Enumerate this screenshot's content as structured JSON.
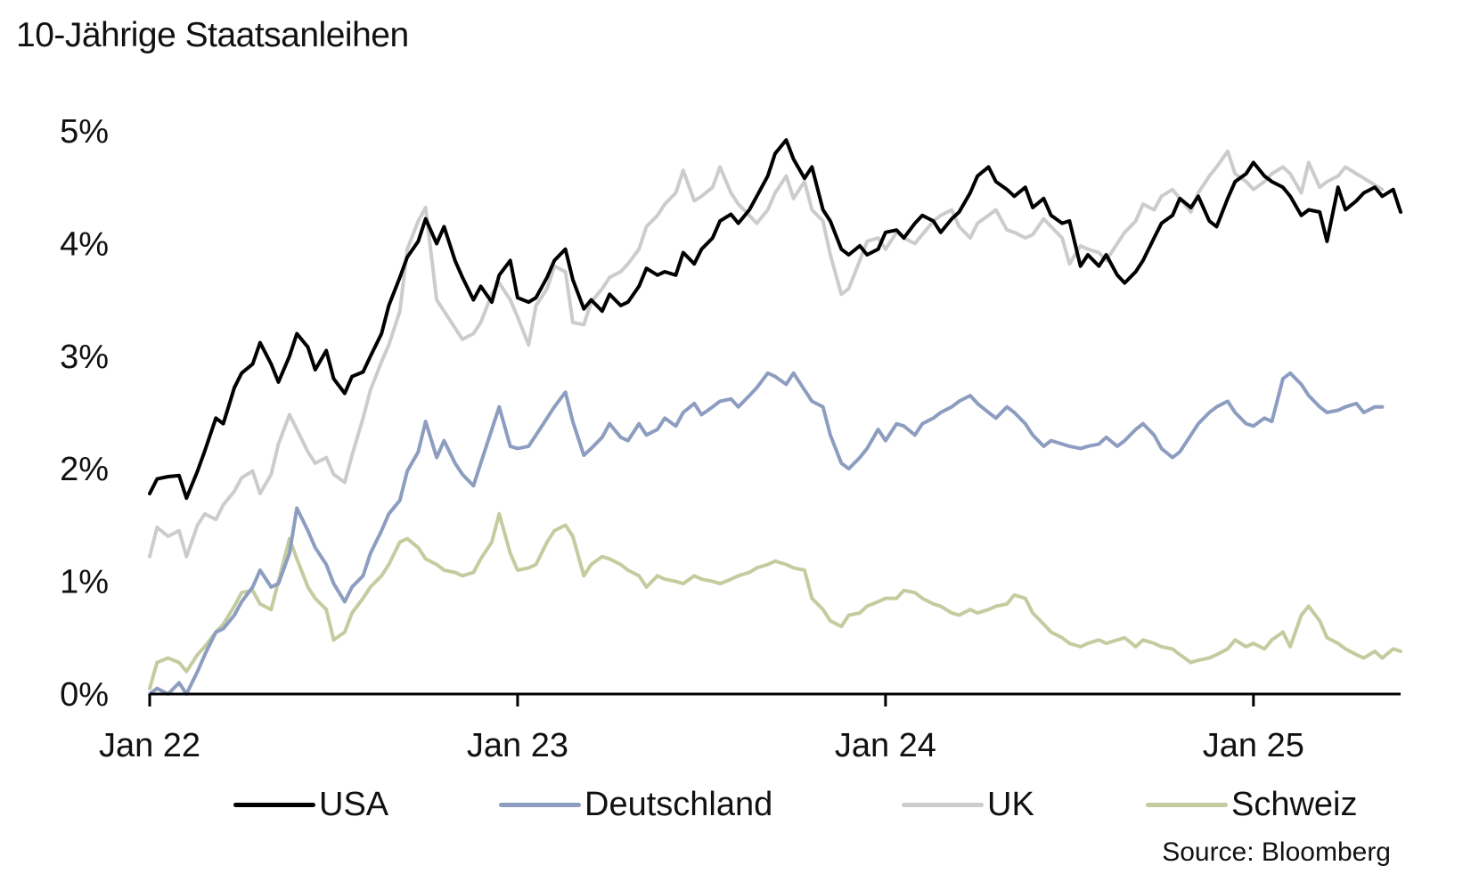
{
  "chart_data": {
    "type": "line",
    "title": "10-Jährige Staatsanleihen",
    "xlabel": "",
    "ylabel": "",
    "ylim": [
      0,
      5
    ],
    "xlim": [
      2022.0,
      2025.4
    ],
    "yticks": [
      0,
      1,
      2,
      3,
      4,
      5
    ],
    "ytick_labels": [
      "0%",
      "1%",
      "2%",
      "3%",
      "4%",
      "5%"
    ],
    "xticks": [
      2022.0,
      2023.0,
      2024.0,
      2025.0
    ],
    "xtick_labels": [
      "Jan 22",
      "Jan 23",
      "Jan 24",
      "Jan 25"
    ],
    "grid": false,
    "legend_position": "bottom",
    "source": "Source: Bloomberg",
    "x": [
      2022.0,
      2022.02,
      2022.05,
      2022.08,
      2022.1,
      2022.13,
      2022.15,
      2022.18,
      2022.2,
      2022.23,
      2022.25,
      2022.28,
      2022.3,
      2022.33,
      2022.35,
      2022.38,
      2022.4,
      2022.43,
      2022.45,
      2022.48,
      2022.5,
      2022.53,
      2022.55,
      2022.58,
      2022.6,
      2022.63,
      2022.65,
      2022.68,
      2022.7,
      2022.73,
      2022.75,
      2022.78,
      2022.8,
      2022.83,
      2022.85,
      2022.88,
      2022.9,
      2022.93,
      2022.95,
      2022.98,
      2023.0,
      2023.03,
      2023.05,
      2023.08,
      2023.1,
      2023.13,
      2023.15,
      2023.18,
      2023.2,
      2023.23,
      2023.25,
      2023.28,
      2023.3,
      2023.33,
      2023.35,
      2023.38,
      2023.4,
      2023.43,
      2023.45,
      2023.48,
      2023.5,
      2023.53,
      2023.55,
      2023.58,
      2023.6,
      2023.63,
      2023.65,
      2023.68,
      2023.7,
      2023.73,
      2023.75,
      2023.78,
      2023.8,
      2023.83,
      2023.85,
      2023.88,
      2023.9,
      2023.93,
      2023.95,
      2023.98,
      2024.0,
      2024.03,
      2024.05,
      2024.08,
      2024.1,
      2024.13,
      2024.15,
      2024.18,
      2024.2,
      2024.23,
      2024.25,
      2024.28,
      2024.3,
      2024.33,
      2024.35,
      2024.38,
      2024.4,
      2024.43,
      2024.45,
      2024.48,
      2024.5,
      2024.53,
      2024.55,
      2024.58,
      2024.6,
      2024.63,
      2024.65,
      2024.68,
      2024.7,
      2024.73,
      2024.75,
      2024.78,
      2024.8,
      2024.83,
      2024.85,
      2024.88,
      2024.9,
      2024.93,
      2024.95,
      2024.98,
      2025.0,
      2025.03,
      2025.05,
      2025.08,
      2025.1,
      2025.13,
      2025.15,
      2025.18,
      2025.2,
      2025.23,
      2025.25,
      2025.28,
      2025.3,
      2025.33,
      2025.35,
      2025.38,
      2025.4
    ],
    "series": [
      {
        "name": "USA",
        "color": "#000000",
        "values": [
          1.78,
          1.91,
          1.93,
          1.94,
          1.74,
          1.98,
          2.16,
          2.45,
          2.4,
          2.72,
          2.85,
          2.93,
          3.12,
          2.93,
          2.77,
          3.0,
          3.2,
          3.08,
          2.88,
          3.05,
          2.8,
          2.67,
          2.82,
          2.86,
          3.0,
          3.2,
          3.45,
          3.7,
          3.88,
          4.02,
          4.22,
          4.0,
          4.15,
          3.85,
          3.7,
          3.5,
          3.62,
          3.48,
          3.72,
          3.85,
          3.52,
          3.48,
          3.52,
          3.7,
          3.85,
          3.95,
          3.68,
          3.42,
          3.5,
          3.4,
          3.55,
          3.45,
          3.48,
          3.62,
          3.78,
          3.72,
          3.75,
          3.72,
          3.92,
          3.82,
          3.95,
          4.05,
          4.2,
          4.26,
          4.18,
          4.3,
          4.42,
          4.6,
          4.8,
          4.92,
          4.75,
          4.58,
          4.68,
          4.3,
          4.2,
          3.95,
          3.9,
          3.98,
          3.9,
          3.95,
          4.1,
          4.12,
          4.05,
          4.18,
          4.25,
          4.2,
          4.1,
          4.22,
          4.28,
          4.45,
          4.6,
          4.68,
          4.55,
          4.48,
          4.42,
          4.5,
          4.32,
          4.4,
          4.25,
          4.18,
          4.2,
          3.8,
          3.9,
          3.8,
          3.9,
          3.72,
          3.65,
          3.75,
          3.85,
          4.05,
          4.18,
          4.25,
          4.4,
          4.32,
          4.42,
          4.2,
          4.15,
          4.4,
          4.55,
          4.62,
          4.72,
          4.6,
          4.55,
          4.5,
          4.42,
          4.25,
          4.3,
          4.28,
          4.02,
          4.5,
          4.3,
          4.38,
          4.45,
          4.5,
          4.42,
          4.48,
          4.28
        ]
      },
      {
        "name": "Deutschland",
        "color": "#8d9dc0",
        "values": [
          -0.05,
          0.05,
          0.0,
          0.1,
          -0.05,
          0.2,
          0.35,
          0.55,
          0.58,
          0.7,
          0.82,
          0.95,
          1.1,
          0.95,
          0.98,
          1.25,
          1.65,
          1.45,
          1.3,
          1.15,
          0.98,
          0.82,
          0.95,
          1.05,
          1.25,
          1.45,
          1.6,
          1.72,
          1.98,
          2.15,
          2.42,
          2.1,
          2.25,
          2.05,
          1.95,
          1.85,
          2.05,
          2.35,
          2.55,
          2.2,
          2.18,
          2.2,
          2.3,
          2.45,
          2.55,
          2.68,
          2.42,
          2.12,
          2.18,
          2.28,
          2.4,
          2.28,
          2.25,
          2.4,
          2.3,
          2.35,
          2.45,
          2.38,
          2.5,
          2.58,
          2.48,
          2.55,
          2.6,
          2.62,
          2.55,
          2.65,
          2.72,
          2.85,
          2.82,
          2.75,
          2.85,
          2.7,
          2.6,
          2.55,
          2.3,
          2.05,
          2.0,
          2.1,
          2.18,
          2.35,
          2.25,
          2.4,
          2.38,
          2.3,
          2.4,
          2.45,
          2.5,
          2.55,
          2.6,
          2.65,
          2.58,
          2.5,
          2.45,
          2.55,
          2.5,
          2.4,
          2.3,
          2.2,
          2.25,
          2.22,
          2.2,
          2.18,
          2.2,
          2.22,
          2.28,
          2.2,
          2.25,
          2.35,
          2.4,
          2.3,
          2.18,
          2.1,
          2.15,
          2.3,
          2.4,
          2.5,
          2.55,
          2.6,
          2.5,
          2.4,
          2.38,
          2.45,
          2.42,
          2.8,
          2.85,
          2.75,
          2.65,
          2.55,
          2.5,
          2.52,
          2.55,
          2.58,
          2.5,
          2.55,
          2.55
        ]
      },
      {
        "name": "UK",
        "color": "#cccccc",
        "values": [
          1.22,
          1.48,
          1.4,
          1.45,
          1.22,
          1.5,
          1.6,
          1.55,
          1.68,
          1.8,
          1.92,
          1.98,
          1.78,
          1.95,
          2.22,
          2.48,
          2.35,
          2.15,
          2.05,
          2.1,
          1.95,
          1.88,
          2.12,
          2.45,
          2.7,
          2.95,
          3.1,
          3.4,
          3.95,
          4.2,
          4.32,
          3.5,
          3.4,
          3.25,
          3.15,
          3.2,
          3.3,
          3.55,
          3.65,
          3.5,
          3.35,
          3.1,
          3.45,
          3.6,
          3.8,
          3.75,
          3.3,
          3.28,
          3.48,
          3.6,
          3.7,
          3.75,
          3.82,
          3.95,
          4.15,
          4.25,
          4.35,
          4.45,
          4.65,
          4.38,
          4.42,
          4.5,
          4.68,
          4.45,
          4.35,
          4.25,
          4.18,
          4.3,
          4.45,
          4.6,
          4.4,
          4.55,
          4.3,
          4.2,
          3.9,
          3.55,
          3.6,
          3.85,
          4.02,
          4.05,
          3.95,
          4.1,
          4.05,
          4.0,
          4.08,
          4.2,
          4.25,
          4.3,
          4.15,
          4.05,
          4.18,
          4.25,
          4.3,
          4.12,
          4.1,
          4.05,
          4.08,
          4.22,
          4.15,
          4.05,
          3.82,
          3.98,
          3.95,
          3.92,
          3.85,
          4.0,
          4.1,
          4.2,
          4.35,
          4.3,
          4.42,
          4.48,
          4.4,
          4.28,
          4.45,
          4.6,
          4.68,
          4.82,
          4.62,
          4.55,
          4.48,
          4.55,
          4.62,
          4.68,
          4.62,
          4.45,
          4.72,
          4.5,
          4.55,
          4.6,
          4.68,
          4.62,
          4.58,
          4.52,
          4.48
        ]
      },
      {
        "name": "Schweiz",
        "color": "#c4cc9f",
        "values": [
          0.05,
          0.28,
          0.32,
          0.28,
          0.2,
          0.35,
          0.42,
          0.55,
          0.62,
          0.78,
          0.9,
          0.92,
          0.8,
          0.75,
          1.0,
          1.38,
          1.2,
          0.95,
          0.85,
          0.75,
          0.48,
          0.55,
          0.72,
          0.85,
          0.95,
          1.05,
          1.15,
          1.35,
          1.38,
          1.3,
          1.2,
          1.15,
          1.1,
          1.08,
          1.05,
          1.08,
          1.2,
          1.35,
          1.6,
          1.25,
          1.1,
          1.12,
          1.15,
          1.35,
          1.45,
          1.5,
          1.4,
          1.05,
          1.15,
          1.22,
          1.2,
          1.15,
          1.1,
          1.05,
          0.95,
          1.05,
          1.02,
          1.0,
          0.98,
          1.05,
          1.02,
          1.0,
          0.98,
          1.02,
          1.05,
          1.08,
          1.12,
          1.15,
          1.18,
          1.15,
          1.12,
          1.1,
          0.85,
          0.75,
          0.65,
          0.6,
          0.7,
          0.72,
          0.78,
          0.82,
          0.85,
          0.85,
          0.92,
          0.9,
          0.85,
          0.8,
          0.78,
          0.72,
          0.7,
          0.75,
          0.72,
          0.75,
          0.78,
          0.8,
          0.88,
          0.85,
          0.72,
          0.62,
          0.55,
          0.5,
          0.45,
          0.42,
          0.45,
          0.48,
          0.45,
          0.48,
          0.5,
          0.42,
          0.48,
          0.45,
          0.42,
          0.4,
          0.35,
          0.28,
          0.3,
          0.32,
          0.35,
          0.4,
          0.48,
          0.42,
          0.45,
          0.4,
          0.48,
          0.55,
          0.42,
          0.7,
          0.78,
          0.65,
          0.5,
          0.45,
          0.4,
          0.35,
          0.32,
          0.38,
          0.32,
          0.4,
          0.38
        ]
      }
    ]
  }
}
